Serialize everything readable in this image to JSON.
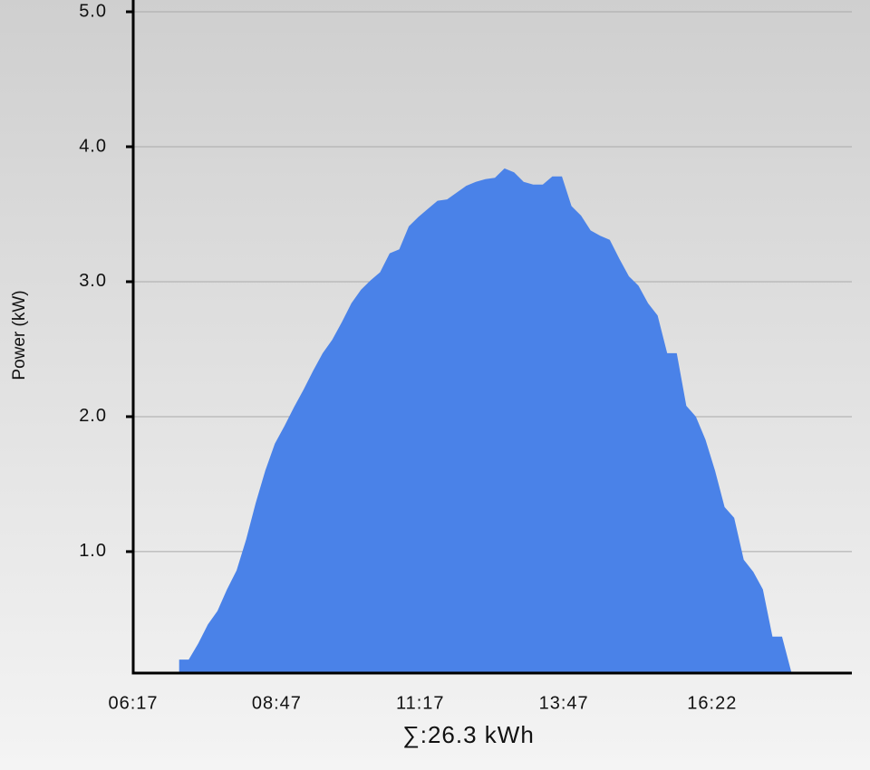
{
  "chart_data": {
    "type": "area",
    "y_label": "Power (kW)",
    "summary": "∑:26.3 kWh",
    "x": [
      425,
      435,
      445,
      455,
      465,
      475,
      485,
      495,
      505,
      515,
      525,
      535,
      545,
      555,
      565,
      575,
      585,
      595,
      605,
      615,
      625,
      635,
      645,
      655,
      665,
      675,
      685,
      695,
      705,
      715,
      725,
      735,
      745,
      755,
      765,
      775,
      785,
      795,
      805,
      815,
      825,
      835,
      845,
      855,
      865,
      875,
      885,
      895,
      905,
      915,
      925,
      935,
      945,
      955,
      965,
      975,
      985,
      995,
      1005,
      1015,
      1025,
      1035,
      1045,
      1055,
      1065
    ],
    "series": [
      {
        "name": "Power",
        "color": "#4a82e8",
        "values": [
          0.2,
          0.2,
          0.32,
          0.46,
          0.56,
          0.72,
          0.86,
          1.09,
          1.36,
          1.6,
          1.8,
          1.93,
          2.07,
          2.2,
          2.34,
          2.47,
          2.57,
          2.7,
          2.84,
          2.94,
          3.01,
          3.07,
          3.21,
          3.24,
          3.41,
          3.48,
          3.54,
          3.6,
          3.61,
          3.66,
          3.71,
          3.74,
          3.76,
          3.77,
          3.84,
          3.81,
          3.74,
          3.72,
          3.72,
          3.78,
          3.78,
          3.56,
          3.49,
          3.38,
          3.34,
          3.31,
          3.17,
          3.04,
          2.97,
          2.84,
          2.75,
          2.47,
          2.47,
          2.08,
          2.0,
          1.83,
          1.6,
          1.33,
          1.25,
          0.94,
          0.85,
          0.72,
          0.37,
          0.37,
          0.1
        ]
      }
    ],
    "xlim": [
      377,
      1128
    ],
    "xticks": [
      {
        "value": 377,
        "label": "06:17"
      },
      {
        "value": 527,
        "label": "08:47"
      },
      {
        "value": 677,
        "label": "11:17"
      },
      {
        "value": 827,
        "label": "13:47"
      },
      {
        "value": 982,
        "label": "16:22"
      }
    ],
    "ylim": [
      0.1,
      5.0
    ],
    "yticks": [
      {
        "value": 1,
        "label": "1.0"
      },
      {
        "value": 2,
        "label": "2.0"
      },
      {
        "value": 3,
        "label": "3.0"
      },
      {
        "value": 4,
        "label": "4.0"
      },
      {
        "value": 5,
        "label": "5.0"
      }
    ],
    "grid": true
  }
}
